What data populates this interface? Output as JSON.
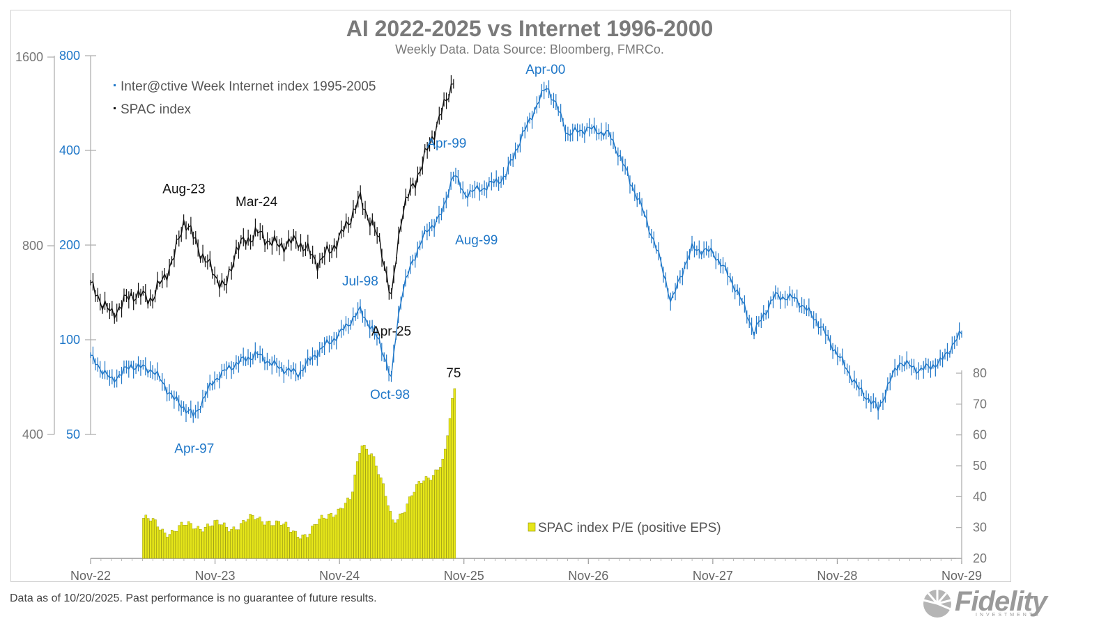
{
  "chart_data": {
    "type": "line",
    "title": "AI 2022-2025 vs Internet 1996-2000",
    "subtitle": "Weekly Data. Data Source: Bloomberg, FMRCo.",
    "x_ticks": [
      "Nov-22",
      "Nov-23",
      "Nov-24",
      "Nov-25",
      "Nov-26",
      "Nov-27",
      "Nov-28",
      "Nov-29"
    ],
    "y_left_outer_ticks": [
      400,
      800,
      1600
    ],
    "y_left_inner_ticks": [
      50,
      100,
      200,
      400,
      800
    ],
    "y_right_ticks": [
      20,
      30,
      40,
      50,
      60,
      70,
      80
    ],
    "y_scale": "log",
    "series": [
      {
        "name": "Inter@ctive Week Internet index 1995-2005",
        "axis": "left-inner",
        "color": "#1f77c8",
        "x": [
          "2022-11",
          "2023-01",
          "2023-03",
          "2023-05",
          "2023-07",
          "2023-09",
          "2023-11",
          "2024-01",
          "2024-03",
          "2024-05",
          "2024-07",
          "2024-09",
          "2024-11",
          "2025-01",
          "2025-03",
          "2025-04",
          "2025-05",
          "2025-07",
          "2025-09",
          "2025-10",
          "2025-11",
          "2026-01",
          "2026-03",
          "2026-05",
          "2026-07",
          "2026-09",
          "2026-11",
          "2027-01",
          "2027-03",
          "2027-05",
          "2027-07",
          "2027-09",
          "2027-11",
          "2028-01",
          "2028-03",
          "2028-05",
          "2028-07",
          "2028-09",
          "2028-11",
          "2029-01",
          "2029-03",
          "2029-05",
          "2029-07",
          "2029-09",
          "2029-11"
        ],
        "values": [
          88,
          74,
          83,
          80,
          65,
          57,
          75,
          84,
          90,
          82,
          78,
          92,
          104,
          124,
          96,
          74,
          140,
          210,
          255,
          340,
          290,
          305,
          330,
          470,
          640,
          450,
          470,
          450,
          320,
          220,
          130,
          195,
          190,
          150,
          105,
          138,
          135,
          115,
          90,
          70,
          60,
          85,
          80,
          85,
          105
        ]
      },
      {
        "name": "SPAC index",
        "axis": "left-outer",
        "color": "#111111",
        "x": [
          "2022-11",
          "2023-01",
          "2023-03",
          "2023-05",
          "2023-07",
          "2023-08",
          "2023-10",
          "2023-12",
          "2024-01",
          "2024-03",
          "2024-05",
          "2024-07",
          "2024-09",
          "2024-11",
          "2025-01",
          "2025-03",
          "2025-04",
          "2025-05",
          "2025-07",
          "2025-09",
          "2025-10"
        ],
        "values": [
          690,
          620,
          670,
          660,
          760,
          880,
          760,
          680,
          790,
          840,
          800,
          815,
          750,
          820,
          950,
          800,
          650,
          900,
          1080,
          1320,
          1480
        ]
      },
      {
        "name": "SPAC index P/E (positive EPS)",
        "type": "bar",
        "axis": "right",
        "color": "#e6e619",
        "x": [
          "2023-04",
          "2023-06",
          "2023-08",
          "2023-10",
          "2023-12",
          "2024-02",
          "2024-04",
          "2024-06",
          "2024-08",
          "2024-10",
          "2024-12",
          "2025-01",
          "2025-02",
          "2025-04",
          "2025-05",
          "2025-07",
          "2025-09",
          "2025-10"
        ],
        "values": [
          33,
          29,
          30,
          31,
          30,
          32,
          33,
          29,
          28,
          35,
          38,
          58,
          55,
          32,
          36,
          45,
          52,
          75
        ]
      }
    ],
    "annotations": [
      {
        "label": "Aug-23",
        "series": "SPAC index",
        "x": "2023-08",
        "value": 880
      },
      {
        "label": "Mar-24",
        "series": "SPAC index",
        "x": "2024-03",
        "value": 840
      },
      {
        "label": "Apr-25",
        "series": "SPAC index",
        "x": "2025-04",
        "value": 650
      },
      {
        "label": "Apr-97",
        "series": "Inter@ctive Week Internet index 1995-2005",
        "x": "2023-09",
        "value": 57
      },
      {
        "label": "Jul-98",
        "series": "Inter@ctive Week Internet index 1995-2005",
        "x": "2025-01",
        "value": 124
      },
      {
        "label": "Oct-98",
        "series": "Inter@ctive Week Internet index 1995-2005",
        "x": "2025-04",
        "value": 74
      },
      {
        "label": "Apr-99",
        "series": "Inter@ctive Week Internet index 1995-2005",
        "x": "2025-10",
        "value": 340
      },
      {
        "label": "Aug-99",
        "series": "Inter@ctive Week Internet index 1995-2005",
        "x": "2025-11",
        "value": 290
      },
      {
        "label": "Apr-00",
        "series": "Inter@ctive Week Internet index 1995-2005",
        "x": "2026-07",
        "value": 640
      },
      {
        "label": "75",
        "series": "SPAC index P/E (positive EPS)",
        "x": "2025-10",
        "value": 75
      }
    ],
    "legend": "top-left",
    "grid": false
  },
  "footer": {
    "note": "Data as of 10/20/2025. Past performance is no guarantee of future results.",
    "brand": "Fidelity",
    "brand_sub": "INVESTMENTS"
  }
}
